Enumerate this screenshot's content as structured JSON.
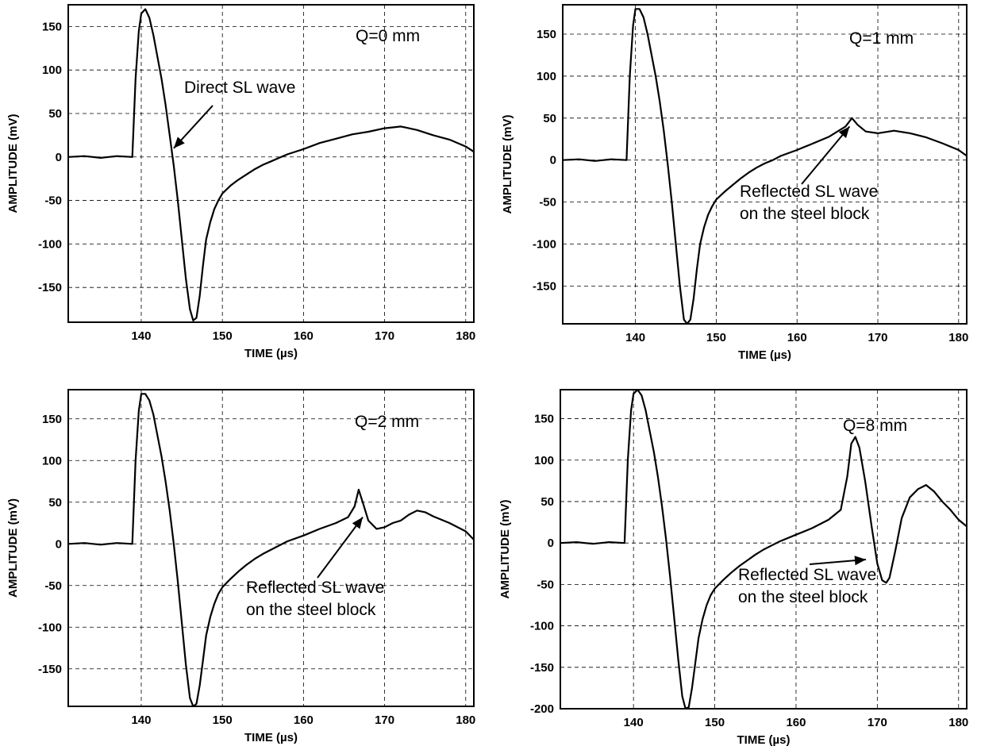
{
  "chart_data": [
    {
      "type": "line",
      "xlabel": "TIME (µs)",
      "ylabel": "AMPLITUDE (mV)",
      "xlim": [
        131,
        181
      ],
      "ylim": [
        -190,
        175
      ],
      "xticks": [
        140,
        150,
        160,
        170,
        180
      ],
      "yticks": [
        -150,
        -100,
        -50,
        0,
        50,
        100,
        150
      ],
      "grid": true,
      "label": "Q=0 mm",
      "annotations": [
        {
          "text": "Direct SL wave",
          "arrow_to": [
            144.0,
            10
          ]
        }
      ],
      "series": [
        {
          "x": [
            131,
            133,
            135,
            137,
            138.9,
            139.3,
            139.7,
            140,
            140.5,
            141,
            141.5,
            142,
            142.5,
            143,
            143.5,
            144,
            144.5,
            145,
            145.5,
            146,
            146.4,
            146.8,
            147.2,
            147.6,
            148,
            148.5,
            149,
            149.5,
            150,
            151,
            152,
            153,
            154,
            155,
            156,
            157,
            158,
            160,
            162,
            164,
            166,
            168,
            170,
            172,
            174,
            176,
            178,
            180,
            181
          ],
          "y": [
            0,
            1,
            -1,
            1,
            0,
            90,
            145,
            165,
            170,
            160,
            140,
            115,
            90,
            60,
            25,
            -10,
            -50,
            -95,
            -140,
            -175,
            -188,
            -185,
            -160,
            -125,
            -95,
            -75,
            -60,
            -50,
            -42,
            -33,
            -26,
            -20,
            -14,
            -9,
            -5,
            -1,
            3,
            9,
            16,
            21,
            26,
            29,
            33,
            35,
            31,
            25,
            20,
            12,
            6
          ]
        }
      ]
    },
    {
      "type": "line",
      "xlabel": "TIME (µs)",
      "ylabel": "AMPLITUDE (mV)",
      "xlim": [
        131,
        181
      ],
      "ylim": [
        -195,
        185
      ],
      "xticks": [
        140,
        150,
        160,
        170,
        180
      ],
      "yticks": [
        -150,
        -100,
        -50,
        0,
        50,
        100,
        150
      ],
      "grid": true,
      "label": "Q=1 mm",
      "annotations": [
        {
          "text": "Reflected SL wave",
          "text2": "on the steel block",
          "arrow_to": [
            166.5,
            40
          ]
        }
      ],
      "series": [
        {
          "x": [
            131,
            133,
            135,
            137,
            138.9,
            139.3,
            139.7,
            140,
            140.5,
            141,
            141.5,
            142,
            142.5,
            143,
            143.5,
            144,
            144.5,
            145,
            145.5,
            146,
            146.4,
            146.8,
            147.2,
            147.6,
            148,
            148.5,
            149,
            149.5,
            150,
            151,
            152,
            153,
            154,
            155,
            156,
            157,
            158,
            160,
            162,
            164,
            165,
            166,
            166.8,
            167.5,
            168.5,
            170,
            172,
            174,
            176,
            178,
            180,
            181
          ],
          "y": [
            0,
            1,
            -1,
            1,
            0,
            100,
            160,
            180,
            180,
            170,
            150,
            125,
            100,
            70,
            35,
            -5,
            -50,
            -100,
            -150,
            -190,
            -195,
            -190,
            -165,
            -130,
            -100,
            -80,
            -65,
            -55,
            -47,
            -38,
            -30,
            -22,
            -15,
            -9,
            -4,
            0,
            5,
            12,
            20,
            28,
            34,
            40,
            50,
            42,
            34,
            32,
            35,
            32,
            27,
            20,
            12,
            5
          ]
        }
      ]
    },
    {
      "type": "line",
      "xlabel": "TIME (µs)",
      "ylabel": "AMPLITUDE (mV)",
      "xlim": [
        131,
        181
      ],
      "ylim": [
        -195,
        185
      ],
      "xticks": [
        140,
        150,
        160,
        170,
        180
      ],
      "yticks": [
        -150,
        -100,
        -50,
        0,
        50,
        100,
        150
      ],
      "grid": true,
      "label": "Q=2 mm",
      "annotations": [
        {
          "text": "Reflected SL wave",
          "text2": "on the steel block",
          "arrow_to": [
            167.3,
            32
          ]
        }
      ],
      "series": [
        {
          "x": [
            131,
            133,
            135,
            137,
            138.9,
            139.3,
            139.7,
            140,
            140.5,
            141,
            141.5,
            142,
            142.5,
            143,
            143.5,
            144,
            144.5,
            145,
            145.5,
            146,
            146.4,
            146.8,
            147.2,
            147.6,
            148,
            148.5,
            149,
            149.5,
            150,
            151,
            152,
            153,
            154,
            155,
            156,
            157,
            158,
            160,
            162,
            164,
            165.5,
            166.3,
            166.8,
            167.3,
            168,
            169,
            170,
            171,
            172,
            173,
            174,
            175,
            176,
            178,
            180,
            181
          ],
          "y": [
            0,
            1,
            -1,
            1,
            0,
            100,
            160,
            180,
            180,
            172,
            155,
            130,
            105,
            75,
            40,
            0,
            -45,
            -95,
            -145,
            -185,
            -195,
            -192,
            -170,
            -140,
            -110,
            -88,
            -72,
            -60,
            -52,
            -42,
            -33,
            -25,
            -18,
            -12,
            -7,
            -2,
            3,
            10,
            18,
            25,
            32,
            45,
            65,
            50,
            28,
            18,
            20,
            25,
            28,
            35,
            40,
            38,
            33,
            25,
            15,
            5
          ]
        }
      ]
    },
    {
      "type": "line",
      "xlabel": "TIME (µs)",
      "ylabel": "AMPLITUDE (mV)",
      "xlim": [
        131,
        181
      ],
      "ylim": [
        -200,
        185
      ],
      "xticks": [
        140,
        150,
        160,
        170,
        180
      ],
      "yticks": [
        -200,
        -150,
        -100,
        -50,
        0,
        50,
        100,
        150
      ],
      "grid": true,
      "label": "Q=8 mm",
      "annotations": [
        {
          "text": "Reflected SL wave",
          "text2": "on the steel block",
          "arrow_to": [
            168.6,
            -20
          ]
        }
      ],
      "series": [
        {
          "x": [
            131,
            133,
            135,
            137,
            138.9,
            139.3,
            139.7,
            140,
            140.5,
            141,
            141.5,
            142,
            142.5,
            143,
            143.5,
            144,
            144.5,
            145,
            145.5,
            146,
            146.4,
            146.8,
            147.2,
            147.6,
            148,
            148.5,
            149,
            149.5,
            150,
            151,
            152,
            153,
            154,
            155,
            156,
            157,
            158,
            160,
            162,
            164,
            165.5,
            166.3,
            166.8,
            167.3,
            167.8,
            168.5,
            169.3,
            170,
            170.6,
            171.1,
            171.5,
            172.2,
            173,
            174,
            175,
            176,
            177,
            178,
            179,
            180,
            181
          ],
          "y": [
            0,
            1,
            -1,
            1,
            0,
            100,
            160,
            180,
            185,
            178,
            160,
            135,
            110,
            80,
            45,
            5,
            -40,
            -90,
            -140,
            -185,
            -200,
            -198,
            -175,
            -145,
            -115,
            -92,
            -75,
            -63,
            -55,
            -45,
            -36,
            -28,
            -21,
            -14,
            -8,
            -3,
            2,
            10,
            18,
            28,
            40,
            80,
            120,
            128,
            115,
            75,
            20,
            -25,
            -45,
            -48,
            -42,
            -10,
            30,
            55,
            65,
            70,
            62,
            50,
            40,
            28,
            20
          ]
        }
      ]
    }
  ]
}
